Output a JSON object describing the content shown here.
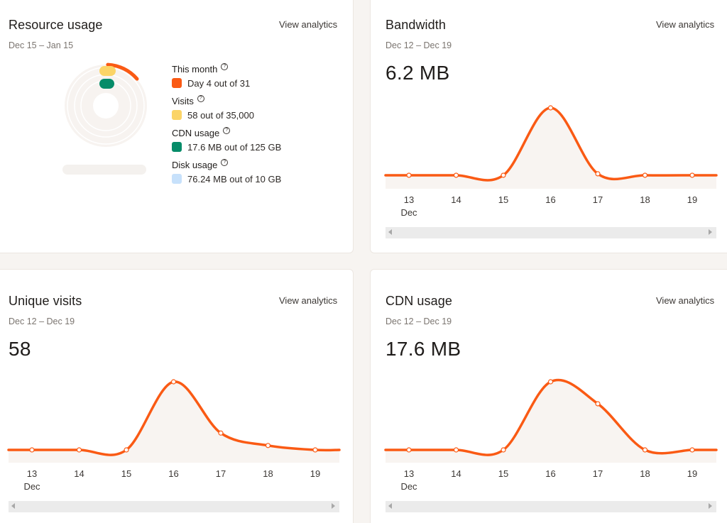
{
  "colors": {
    "accent": "#fa5a14",
    "visits": "#fbd467",
    "cdn": "#068c69",
    "disk": "#c7e1fb",
    "area": "#f8f4f1"
  },
  "resource": {
    "title": "Resource usage",
    "link": "View analytics",
    "range": "Dec 15 – Jan 15",
    "items": [
      {
        "label": "This month",
        "value": "Day 4 out of 31",
        "color": "#fa5a14",
        "icon": "help-icon"
      },
      {
        "label": "Visits",
        "value": "58 out of 35,000",
        "color": "#fbd467",
        "icon": "help-icon"
      },
      {
        "label": "CDN usage",
        "value": "17.6 MB out of 125 GB",
        "color": "#068c69",
        "icon": "help-icon"
      },
      {
        "label": "Disk usage",
        "value": "76.24 MB out of 10 GB",
        "color": "#c7e1fb",
        "icon": "help-icon"
      }
    ],
    "month_progress": 0.129
  },
  "bandwidth": {
    "title": "Bandwidth",
    "link": "View analytics",
    "range": "Dec 12 – Dec 19",
    "value": "6.2 MB"
  },
  "visits": {
    "title": "Unique visits",
    "link": "View analytics",
    "range": "Dec 12 – Dec 19",
    "value": "58"
  },
  "cdn": {
    "title": "CDN usage",
    "link": "View analytics",
    "range": "Dec 12 – Dec 19",
    "value": "17.6 MB"
  },
  "chart_data": [
    {
      "type": "area",
      "id": "bandwidth",
      "x": [
        "13",
        "14",
        "15",
        "16",
        "17",
        "18",
        "19"
      ],
      "x_sub": "Dec",
      "values": [
        0.08,
        0.08,
        0.08,
        1.0,
        0.1,
        0.08,
        0.08
      ],
      "grid": false,
      "color": "#fa5a14"
    },
    {
      "type": "area",
      "id": "visits",
      "x": [
        "13",
        "14",
        "15",
        "16",
        "17",
        "18",
        "19"
      ],
      "x_sub": "Dec",
      "values": [
        0.07,
        0.07,
        0.07,
        1.0,
        0.3,
        0.13,
        0.07
      ],
      "grid": false,
      "color": "#fa5a14"
    },
    {
      "type": "area",
      "id": "cdn",
      "x": [
        "13",
        "14",
        "15",
        "16",
        "17",
        "18",
        "19"
      ],
      "x_sub": "Dec",
      "values": [
        0.07,
        0.07,
        0.07,
        1.0,
        0.7,
        0.07,
        0.07
      ],
      "grid": false,
      "color": "#fa5a14"
    }
  ]
}
